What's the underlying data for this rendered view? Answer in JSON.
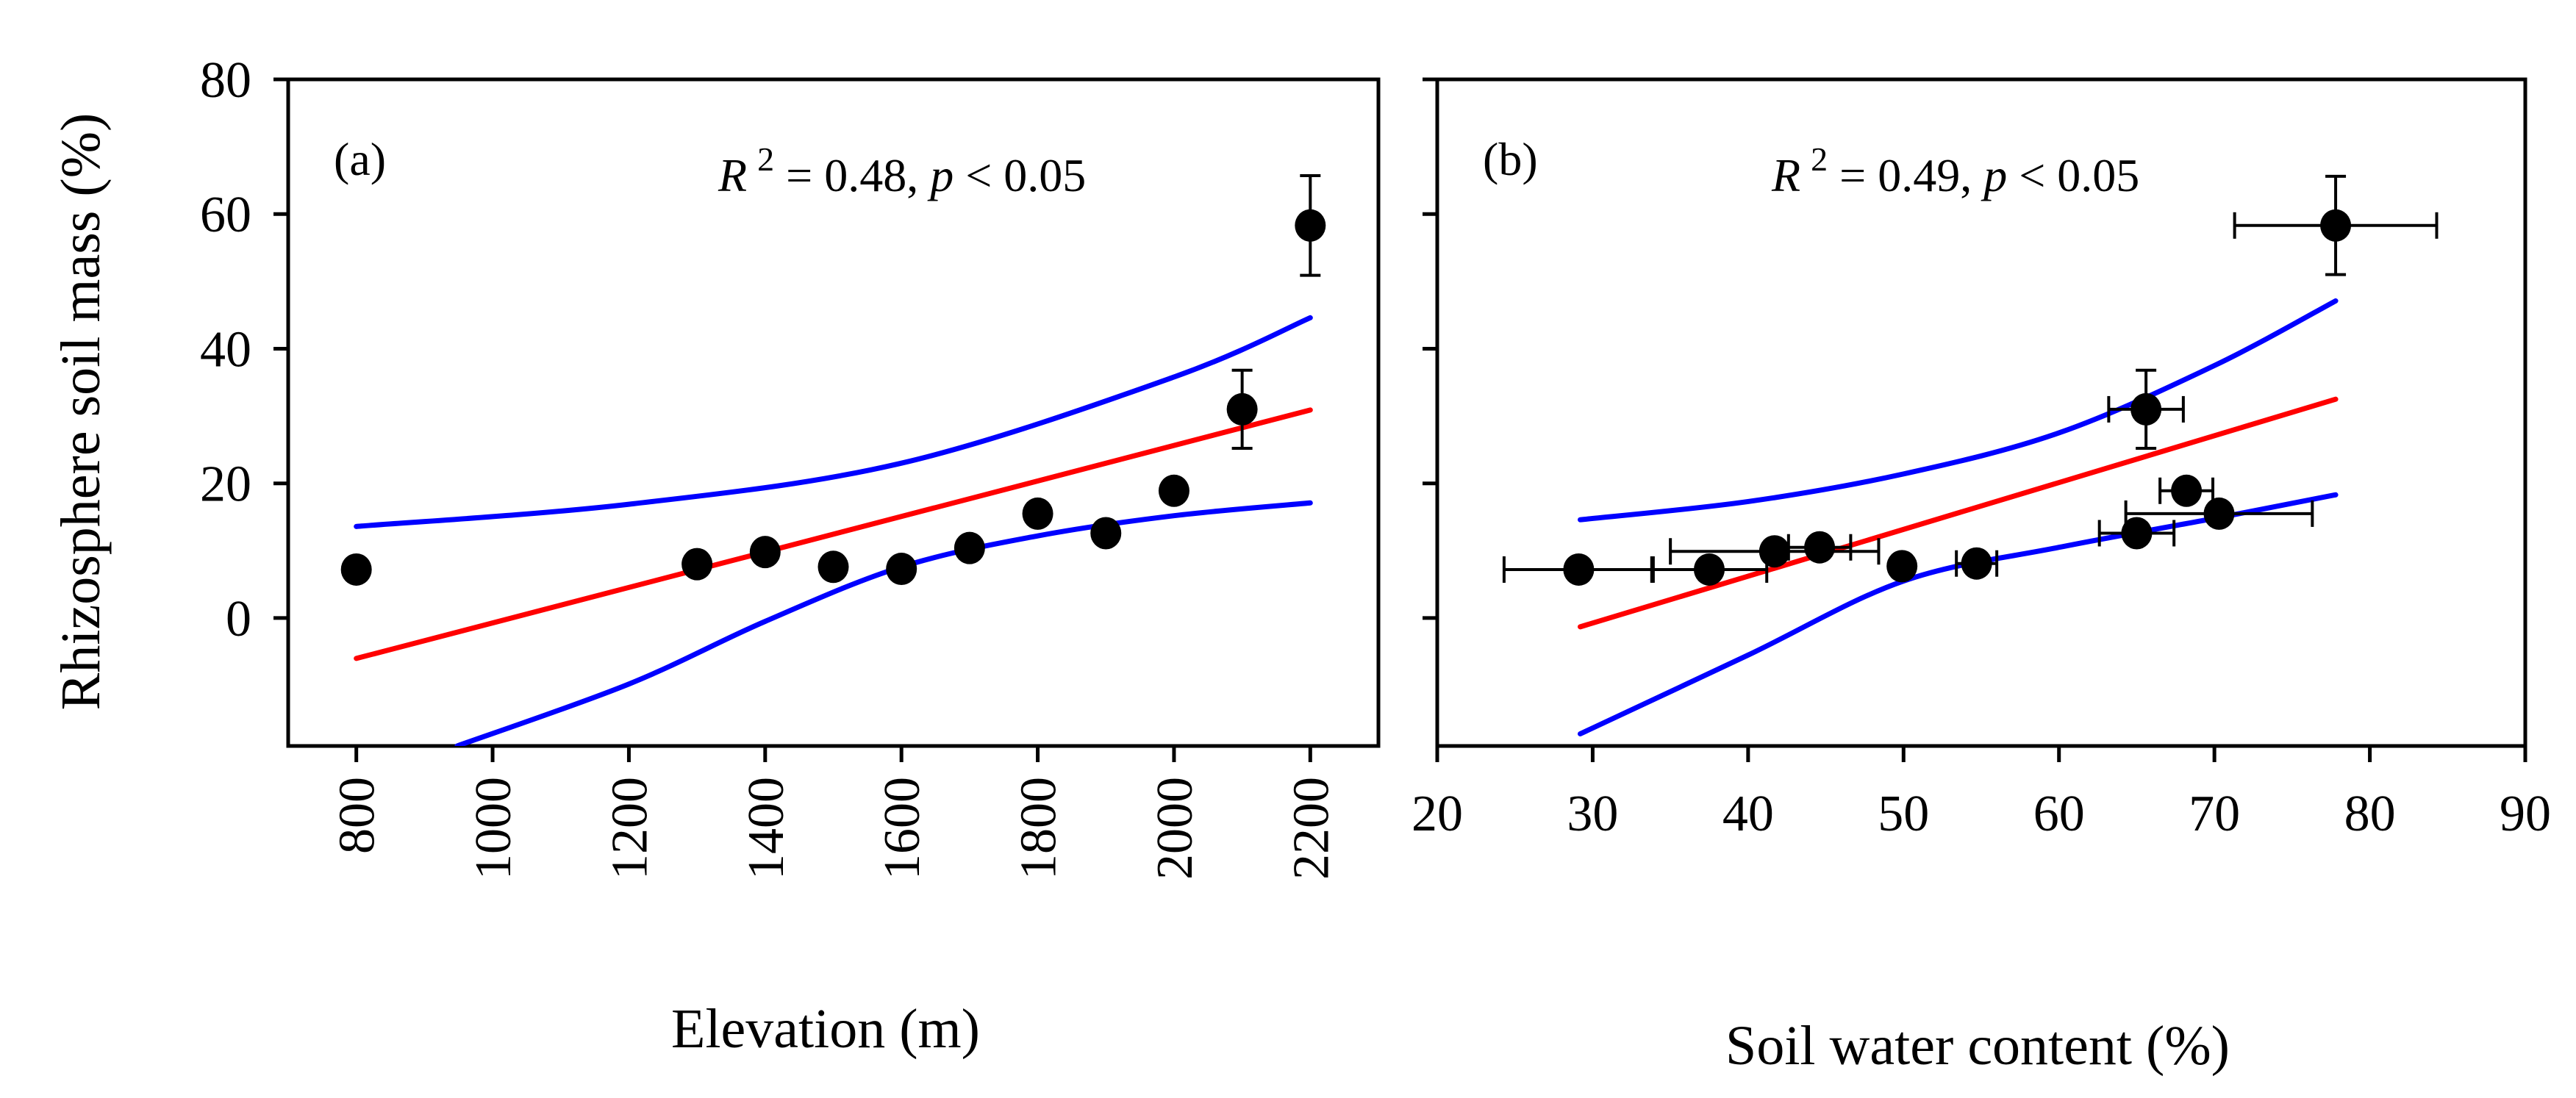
{
  "chart_data": [
    {
      "type": "scatter",
      "panel_label": "(a)",
      "annotation": {
        "r": "R",
        "sup": "2",
        "mid": " = 0.48, ",
        "p": "p",
        "tail": " < 0.05"
      },
      "xlabel": "Elevation (m)",
      "ylabel": "Rhizosphere soil mass (%)",
      "xlim": [
        700,
        2300
      ],
      "ylim": [
        -19,
        80
      ],
      "xticks": [
        800,
        1000,
        1200,
        1400,
        1600,
        1800,
        2000,
        2200
      ],
      "yticks": [
        0,
        20,
        40,
        60,
        80
      ],
      "show_yticklabels": true,
      "grid": false,
      "points": [
        {
          "x": 800,
          "y": 7.2,
          "yerr": 0.8
        },
        {
          "x": 1300,
          "y": 8.0,
          "yerr": 0.8
        },
        {
          "x": 1400,
          "y": 9.8,
          "yerr": 0.8
        },
        {
          "x": 1500,
          "y": 7.6,
          "yerr": 1.0
        },
        {
          "x": 1600,
          "y": 7.3,
          "yerr": 0.8
        },
        {
          "x": 1700,
          "y": 10.4,
          "yerr": 0.8
        },
        {
          "x": 1800,
          "y": 15.5,
          "yerr": 0.6
        },
        {
          "x": 1900,
          "y": 12.6,
          "yerr": 0.8
        },
        {
          "x": 2000,
          "y": 18.9,
          "yerr": 1.0
        },
        {
          "x": 2100,
          "y": 31.0,
          "yerr": 5.8
        },
        {
          "x": 2200,
          "y": 58.3,
          "yerr": 7.4
        }
      ],
      "fit": {
        "color": "#ff0000",
        "x": [
          800,
          2200
        ],
        "y": [
          -6.0,
          30.9
        ]
      },
      "ci_upper": {
        "color": "#0000ff",
        "x": [
          800,
          1200,
          1600,
          2000,
          2200
        ],
        "y": [
          13.6,
          16.9,
          23.0,
          35.8,
          44.6
        ]
      },
      "ci_lower": {
        "color": "#0000ff",
        "x": [
          948,
          1200,
          1400,
          1600,
          1800,
          2000,
          2200
        ],
        "y": [
          -19.0,
          -9.8,
          -0.5,
          7.6,
          12.2,
          15.2,
          17.1
        ]
      }
    },
    {
      "type": "scatter",
      "panel_label": "(b)",
      "annotation": {
        "r": "R",
        "sup": "2",
        "mid": " = 0.49, ",
        "p": "p",
        "tail": " < 0.05"
      },
      "xlabel": "Soil water content (%)",
      "ylabel": "",
      "xlim": [
        20,
        90
      ],
      "ylim": [
        -19,
        80
      ],
      "xticks": [
        20,
        30,
        40,
        50,
        60,
        70,
        80,
        90
      ],
      "yticks": [
        0,
        20,
        40,
        60,
        80
      ],
      "show_yticklabels": false,
      "grid": false,
      "points": [
        {
          "x": 29.1,
          "y": 7.2,
          "xerr": 4.8,
          "yerr": 0.8
        },
        {
          "x": 37.5,
          "y": 7.2,
          "xerr": 3.7,
          "yerr": 0.8
        },
        {
          "x": 41.7,
          "y": 9.9,
          "xerr": 6.7,
          "yerr": 0.8
        },
        {
          "x": 44.6,
          "y": 10.5,
          "xerr": 2.0,
          "yerr": 0.8
        },
        {
          "x": 49.9,
          "y": 7.7,
          "xerr": 0.4,
          "yerr": 0.8
        },
        {
          "x": 54.7,
          "y": 8.1,
          "xerr": 1.3,
          "yerr": 0.8
        },
        {
          "x": 65.0,
          "y": 12.6,
          "xerr": 2.4,
          "yerr": 0.8
        },
        {
          "x": 65.6,
          "y": 31.0,
          "xerr": 2.4,
          "yerr": 5.8
        },
        {
          "x": 68.2,
          "y": 18.9,
          "xerr": 1.7,
          "yerr": 1.0
        },
        {
          "x": 70.3,
          "y": 15.5,
          "xerr": 6.0,
          "yerr": 0.6
        },
        {
          "x": 77.8,
          "y": 58.3,
          "xerr": 6.5,
          "yerr": 7.3
        }
      ],
      "fit": {
        "color": "#ff0000",
        "x": [
          29.2,
          77.8
        ],
        "y": [
          -1.3,
          32.5
        ]
      },
      "ci_upper": {
        "color": "#0000ff",
        "x": [
          29.2,
          40,
          50,
          60,
          70,
          77.8
        ],
        "y": [
          14.6,
          17.3,
          21.4,
          27.5,
          37.5,
          47.1
        ]
      },
      "ci_lower": {
        "color": "#0000ff",
        "x": [
          29.2,
          40,
          50,
          60,
          70,
          77.8
        ],
        "y": [
          -17.2,
          -5.5,
          5.5,
          10.5,
          14.8,
          18.3
        ]
      }
    }
  ]
}
